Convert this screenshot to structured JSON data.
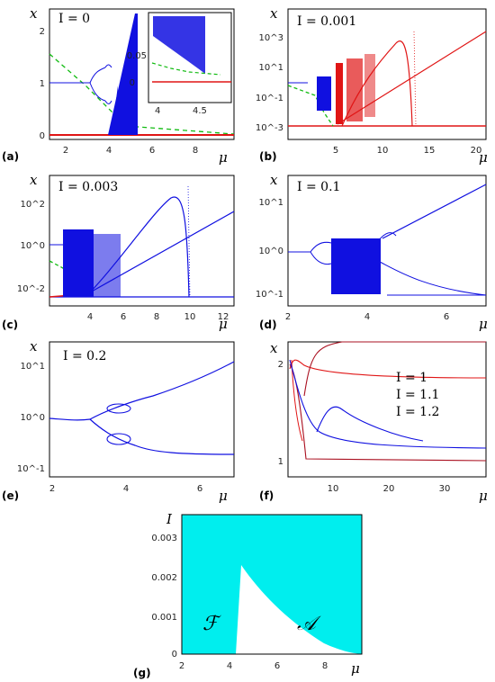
{
  "panels": {
    "a": {
      "label": "(a)",
      "annotation": "I = 0",
      "xlabel": "μ",
      "ylabel": "x",
      "xticks": [
        "2",
        "4",
        "6",
        "8"
      ],
      "yticks": [
        "0",
        "1",
        "2"
      ],
      "inset": {
        "xticks": [
          "4",
          "4.5"
        ],
        "yticks": [
          "0",
          "0.05"
        ]
      }
    },
    "b": {
      "label": "(b)",
      "annotation": "I = 0.001",
      "xlabel": "μ",
      "ylabel": "x",
      "xticks": [
        "5",
        "10",
        "15",
        "20"
      ],
      "yticks": [
        "10^3",
        "10^1",
        "10^-1",
        "10^-3"
      ]
    },
    "c": {
      "label": "(c)",
      "annotation": "I = 0.003",
      "xlabel": "μ",
      "ylabel": "x",
      "xticks": [
        "4",
        "6",
        "8",
        "10",
        "12"
      ],
      "yticks": [
        "10^2",
        "10^0",
        "10^-2"
      ]
    },
    "d": {
      "label": "(d)",
      "annotation": "I = 0.1",
      "xlabel": "μ",
      "ylabel": "x",
      "xticks": [
        "2",
        "4",
        "6"
      ],
      "yticks": [
        "10^1",
        "10^0",
        "10^-1"
      ]
    },
    "e": {
      "label": "(e)",
      "annotation": "I = 0.2",
      "xlabel": "μ",
      "ylabel": "x",
      "xticks": [
        "2",
        "4",
        "6"
      ],
      "yticks": [
        "10^1",
        "10^0",
        "10^-1"
      ]
    },
    "f": {
      "label": "(f)",
      "xlabel": "μ",
      "ylabel": "x",
      "xticks": [
        "10",
        "20",
        "30"
      ],
      "yticks": [
        "2",
        "1"
      ],
      "legend": [
        "I = 1",
        "I = 1.1",
        "I = 1.2"
      ]
    },
    "g": {
      "label": "(g)",
      "xlabel": "μ",
      "ylabel": "I",
      "xticks": [
        "2",
        "4",
        "6",
        "8"
      ],
      "yticks": [
        "0",
        "0.001",
        "0.002",
        "0.003"
      ],
      "regions": [
        "ℱ",
        "𝒜"
      ]
    }
  },
  "colors": {
    "blue": "#1010e0",
    "red": "#e01515",
    "green": "#11bb11",
    "darkred": "#aa1020",
    "cyan": "#00eeee"
  },
  "chart_data": [
    {
      "type": "scatter",
      "panel": "a",
      "annotation": "I = 0",
      "xlim": [
        1,
        9.5
      ],
      "ylim": [
        -0.1,
        2.4
      ],
      "series": [
        {
          "role": "stable branch",
          "color": "blue",
          "x": [
            1,
            3
          ],
          "y": [
            1,
            1
          ]
        },
        {
          "role": "period-2 branch",
          "color": "blue",
          "x": [
            3,
            3.45
          ],
          "y": [
            [
              1.0,
              1.0
            ],
            [
              1.45,
              0.56
            ]
          ]
        },
        {
          "role": "chaotic band",
          "color": "blue",
          "x": [
            3.57,
            4.4
          ],
          "y": [
            0,
            2.2
          ]
        },
        {
          "role": "zero fixed point",
          "color": "red",
          "x": [
            1,
            9.5
          ],
          "y": [
            0,
            0
          ]
        },
        {
          "role": "unstable (dashed)",
          "color": "green",
          "x": [
            1,
            2,
            3,
            4
          ],
          "y": [
            1,
            0.3,
            0.08,
            0.02
          ]
        }
      ]
    },
    {
      "type": "scatter",
      "panel": "b",
      "annotation": "I = 0.001",
      "xlim": [
        1,
        22
      ],
      "ylim_log10": [
        -3.6,
        4
      ]
    },
    {
      "type": "scatter",
      "panel": "c",
      "annotation": "I = 0.003",
      "xlim": [
        2.5,
        13.5
      ],
      "ylim_log10": [
        -3,
        3
      ]
    },
    {
      "type": "scatter",
      "panel": "d",
      "annotation": "I = 0.1",
      "xlim": [
        2,
        7
      ],
      "ylim_log10": [
        -1.3,
        1.6
      ]
    },
    {
      "type": "line",
      "panel": "e",
      "annotation": "I = 0.2",
      "xlim": [
        2,
        7
      ],
      "ylim_log10": [
        -1.3,
        1.6
      ]
    },
    {
      "type": "line",
      "panel": "f",
      "xlim": [
        1,
        37
      ],
      "ylim": [
        0.85,
        2.15
      ],
      "series": [
        {
          "name": "I = 1"
        },
        {
          "name": "I = 1.1"
        },
        {
          "name": "I = 1.2"
        }
      ]
    },
    {
      "type": "area",
      "panel": "g",
      "xlim": [
        2,
        9.5
      ],
      "ylim": [
        0,
        0.0035
      ],
      "boundary": {
        "x": [
          4.5,
          4.6,
          5,
          6,
          7,
          8,
          9,
          9.5
        ],
        "y": [
          0,
          0.0023,
          0.0019,
          0.001,
          0.00048,
          0.0002,
          7e-05,
          3e-05
        ]
      }
    }
  ]
}
